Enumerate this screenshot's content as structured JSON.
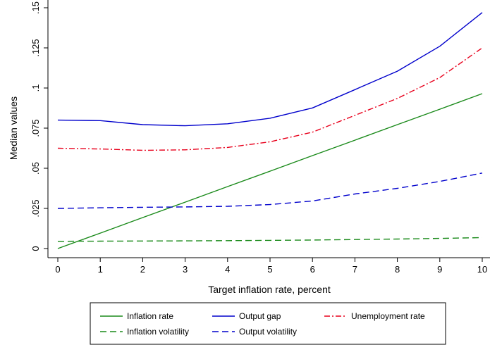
{
  "chart_data": {
    "type": "line",
    "title": "",
    "xlabel": "Target inflation rate, percent",
    "ylabel": "Median values",
    "xlim": [
      0,
      10
    ],
    "ylim": [
      0,
      0.15
    ],
    "x_ticks": [
      "0",
      "1",
      "2",
      "3",
      "4",
      "5",
      "6",
      "7",
      "8",
      "9",
      "10"
    ],
    "y_ticks": [
      "0",
      ".025",
      ".05",
      ".075",
      ".1",
      ".125",
      ".15"
    ],
    "x": [
      0,
      1,
      2,
      3,
      4,
      5,
      6,
      7,
      8,
      9,
      10
    ],
    "grid": false,
    "legend_position": "bottom",
    "series": [
      {
        "name": "Inflation rate",
        "color": "#1a8a1a",
        "dash": "solid",
        "values": [
          0.0,
          0.0096,
          0.0193,
          0.0289,
          0.0386,
          0.0482,
          0.0579,
          0.0675,
          0.0772,
          0.0868,
          0.0965
        ]
      },
      {
        "name": "Output gap",
        "color": "#0000cc",
        "dash": "solid",
        "values": [
          0.08,
          0.0797,
          0.0772,
          0.0765,
          0.0777,
          0.0812,
          0.0876,
          0.099,
          0.1105,
          0.126,
          0.147
        ]
      },
      {
        "name": "Unemployment rate",
        "color": "#e8001c",
        "dash": "dashdot",
        "values": [
          0.0625,
          0.062,
          0.0612,
          0.0615,
          0.063,
          0.0665,
          0.0725,
          0.083,
          0.0935,
          0.1065,
          0.125
        ]
      },
      {
        "name": "Inflation volatility",
        "color": "#1a8a1a",
        "dash": "dash",
        "values": [
          0.0045,
          0.0046,
          0.0047,
          0.0048,
          0.0049,
          0.0051,
          0.0053,
          0.0056,
          0.0059,
          0.0063,
          0.0068
        ]
      },
      {
        "name": "Output volatility",
        "color": "#0000cc",
        "dash": "dash",
        "values": [
          0.025,
          0.0254,
          0.0257,
          0.0259,
          0.0263,
          0.0274,
          0.0296,
          0.034,
          0.0375,
          0.0418,
          0.047
        ]
      }
    ]
  }
}
